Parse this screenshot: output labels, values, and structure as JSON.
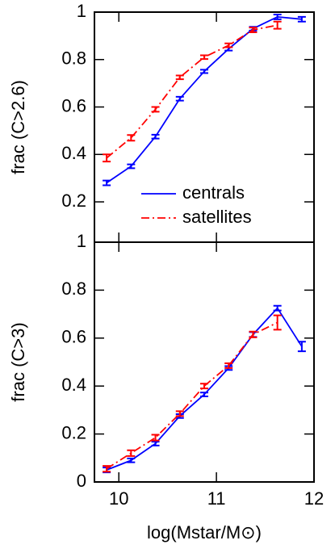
{
  "chart_data": [
    {
      "type": "line",
      "ylabel": "frac  (C>2.6)",
      "x": [
        9.875,
        10.125,
        10.375,
        10.625,
        10.875,
        11.125,
        11.375,
        11.625,
        11.875
      ],
      "xlim": [
        9.75,
        12
      ],
      "xticks": [
        10,
        11,
        12
      ],
      "ylim": [
        0.03,
        1
      ],
      "yticks": [
        0.2,
        0.4,
        0.6,
        0.8,
        1
      ],
      "legend": "lower right",
      "series": [
        {
          "name": "centrals",
          "color": "#0000ff",
          "linestyle": "solid",
          "values": [
            0.28,
            0.35,
            0.475,
            0.635,
            0.75,
            0.845,
            0.93,
            0.98,
            0.97
          ],
          "errors": [
            0.01,
            0.008,
            0.008,
            0.008,
            0.007,
            0.007,
            0.008,
            0.01,
            0.01
          ]
        },
        {
          "name": "satellites",
          "color": "#ff0000",
          "linestyle": "dashdot",
          "values": [
            0.385,
            0.47,
            0.59,
            0.725,
            0.81,
            0.86,
            0.925,
            0.945,
            null
          ],
          "errors": [
            0.015,
            0.012,
            0.01,
            0.008,
            0.008,
            0.008,
            0.01,
            0.015,
            null
          ]
        }
      ]
    },
    {
      "type": "line",
      "ylabel": "frac  (C>3)",
      "xlabel": "log(Mstar/M⊙)",
      "x": [
        9.875,
        10.125,
        10.375,
        10.625,
        10.875,
        11.125,
        11.375,
        11.625,
        11.875
      ],
      "xlim": [
        9.75,
        12
      ],
      "xticks": [
        10,
        11,
        12
      ],
      "ylim": [
        0,
        1
      ],
      "yticks": [
        0,
        0.2,
        0.4,
        0.6,
        0.8,
        1
      ],
      "series": [
        {
          "name": "centrals",
          "color": "#0000ff",
          "linestyle": "solid",
          "values": [
            0.05,
            0.09,
            0.16,
            0.275,
            0.365,
            0.475,
            0.615,
            0.725,
            0.565
          ],
          "errors": [
            0.01,
            0.008,
            0.008,
            0.008,
            0.008,
            0.008,
            0.01,
            0.01,
            0.02
          ]
        },
        {
          "name": "satellites",
          "color": "#ff0000",
          "linestyle": "dashdot",
          "values": [
            0.055,
            0.12,
            0.185,
            0.285,
            0.4,
            0.485,
            0.615,
            0.665,
            null
          ],
          "errors": [
            0.012,
            0.012,
            0.012,
            0.01,
            0.01,
            0.01,
            0.012,
            0.03,
            null
          ]
        }
      ]
    }
  ]
}
